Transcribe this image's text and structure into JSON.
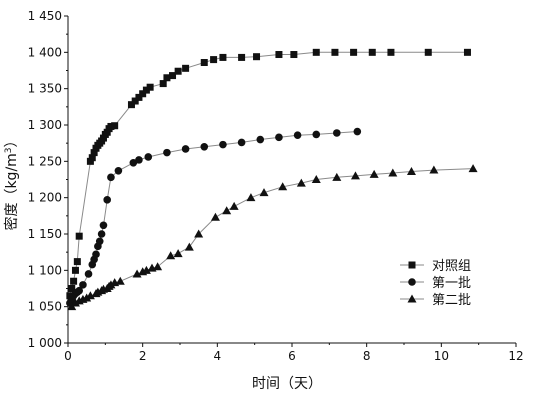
{
  "chart_data": {
    "type": "line",
    "title": "",
    "xlabel": "时间（天）",
    "ylabel": "密度（kg/m³）",
    "ylabel_main": "密度（kg/m",
    "ylabel_sup": "3",
    "ylabel_end": "）",
    "xlim": [
      0,
      12
    ],
    "ylim": [
      1000,
      1450
    ],
    "x_ticks": [
      0,
      2,
      4,
      6,
      8,
      10,
      12
    ],
    "x_tick_labels": [
      "0",
      "2",
      "4",
      "6",
      "8",
      "10",
      "12"
    ],
    "y_ticks": [
      1000,
      1050,
      1100,
      1150,
      1200,
      1250,
      1300,
      1350,
      1400,
      1450
    ],
    "y_tick_labels": [
      "1 000",
      "1 050",
      "1 100",
      "1 150",
      "1 200",
      "1 250",
      "1 300",
      "1 350",
      "1 400",
      "1 450"
    ],
    "grid": false,
    "legend_position": "bottom-right",
    "series": [
      {
        "name": "对照组",
        "marker": "square",
        "x": [
          0.05,
          0.1,
          0.15,
          0.2,
          0.25,
          0.3,
          0.6,
          0.65,
          0.7,
          0.75,
          0.8,
          0.85,
          0.9,
          0.95,
          1.0,
          1.05,
          1.1,
          1.15,
          1.25,
          1.7,
          1.8,
          1.9,
          2.0,
          2.1,
          2.2,
          2.55,
          2.65,
          2.8,
          2.95,
          3.15,
          3.65,
          3.9,
          4.15,
          4.65,
          5.05,
          5.65,
          6.05,
          6.65,
          7.15,
          7.65,
          8.15,
          8.65,
          9.65,
          10.7
        ],
        "y": [
          1065,
          1075,
          1085,
          1100,
          1112,
          1147,
          1250,
          1255,
          1262,
          1268,
          1272,
          1275,
          1278,
          1282,
          1287,
          1290,
          1295,
          1298,
          1299,
          1328,
          1333,
          1338,
          1343,
          1348,
          1352,
          1357,
          1365,
          1368,
          1374,
          1378,
          1386,
          1390,
          1393,
          1393,
          1394,
          1397,
          1397,
          1400,
          1400,
          1400,
          1400,
          1400,
          1400,
          1400
        ]
      },
      {
        "name": "第一批",
        "marker": "circle",
        "x": [
          0.05,
          0.1,
          0.15,
          0.2,
          0.25,
          0.3,
          0.4,
          0.55,
          0.65,
          0.7,
          0.75,
          0.8,
          0.85,
          0.9,
          0.95,
          1.05,
          1.15,
          1.35,
          1.75,
          1.9,
          2.15,
          2.65,
          3.15,
          3.65,
          4.15,
          4.65,
          5.15,
          5.65,
          6.15,
          6.65,
          7.2,
          7.75
        ],
        "y": [
          1055,
          1060,
          1065,
          1068,
          1070,
          1072,
          1080,
          1095,
          1108,
          1115,
          1122,
          1133,
          1140,
          1150,
          1162,
          1197,
          1228,
          1237,
          1248,
          1252,
          1256,
          1262,
          1267,
          1270,
          1273,
          1276,
          1280,
          1283,
          1286,
          1287,
          1289,
          1291
        ]
      },
      {
        "name": "第二批",
        "marker": "triangle",
        "x": [
          0.1,
          0.2,
          0.3,
          0.4,
          0.5,
          0.6,
          0.75,
          0.8,
          0.9,
          0.95,
          1.05,
          1.1,
          1.15,
          1.25,
          1.4,
          1.85,
          2.0,
          2.1,
          2.25,
          2.4,
          2.75,
          2.95,
          3.25,
          3.5,
          3.95,
          4.25,
          4.45,
          4.9,
          5.25,
          5.75,
          6.25,
          6.65,
          7.2,
          7.7,
          8.2,
          8.7,
          9.2,
          9.8,
          10.85
        ],
        "y": [
          1050,
          1055,
          1058,
          1060,
          1062,
          1065,
          1068,
          1070,
          1072,
          1074,
          1075,
          1078,
          1080,
          1083,
          1085,
          1095,
          1098,
          1100,
          1103,
          1105,
          1120,
          1123,
          1132,
          1150,
          1173,
          1182,
          1188,
          1200,
          1207,
          1215,
          1220,
          1225,
          1228,
          1230,
          1232,
          1234,
          1236,
          1238,
          1240
        ]
      }
    ],
    "colors": {
      "line": "#8a8a8a",
      "marker": "#111111",
      "axis": "#111111"
    }
  }
}
